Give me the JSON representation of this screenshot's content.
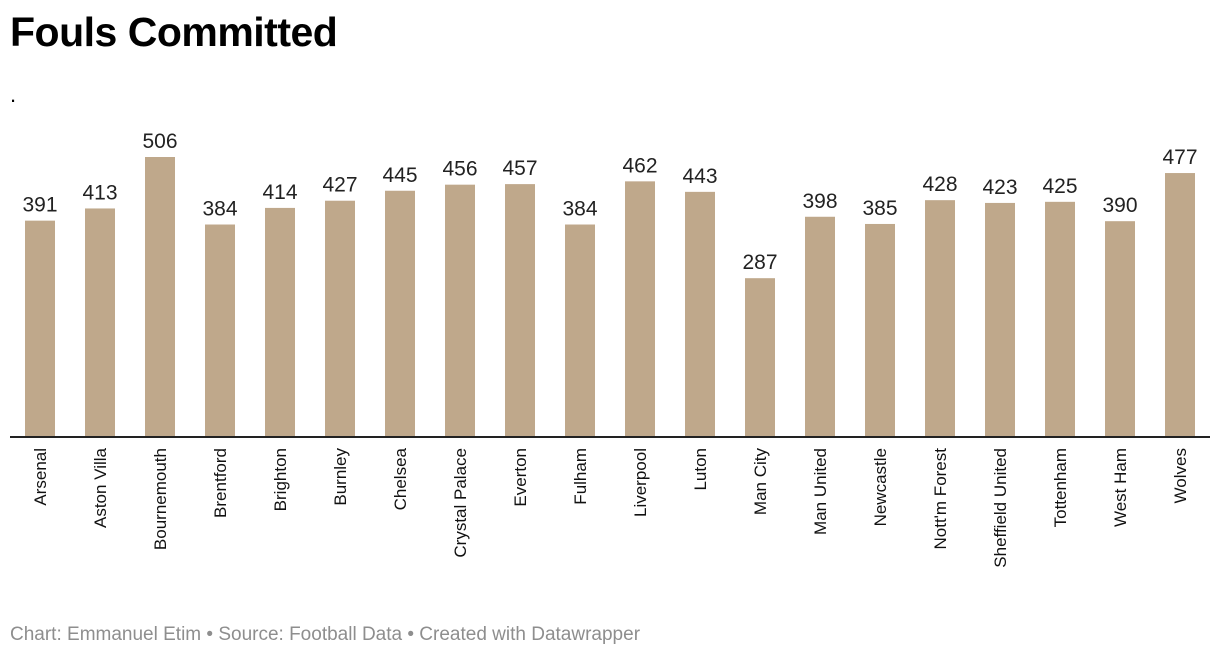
{
  "chart_data": {
    "type": "bar",
    "title": "Fouls Committed",
    "subtitle": ".",
    "categories": [
      "Arsenal",
      "Aston Villa",
      "Bournemouth",
      "Brentford",
      "Brighton",
      "Burnley",
      "Chelsea",
      "Crystal Palace",
      "Everton",
      "Fulham",
      "Liverpool",
      "Luton",
      "Man City",
      "Man United",
      "Newcastle",
      "Nott'm Forest",
      "Sheffield United",
      "Tottenham",
      "West Ham",
      "Wolves"
    ],
    "values": [
      391,
      413,
      506,
      384,
      414,
      427,
      445,
      456,
      457,
      384,
      462,
      443,
      287,
      398,
      385,
      428,
      423,
      425,
      390,
      477
    ],
    "xlabel": "",
    "ylabel": "",
    "ylim": [
      0,
      506
    ],
    "bar_color": "#bfa88b",
    "axis_color": "#222222"
  },
  "footer": {
    "credit": "Chart: Emmanuel Etim • Source: Football Data • Created with Datawrapper"
  }
}
